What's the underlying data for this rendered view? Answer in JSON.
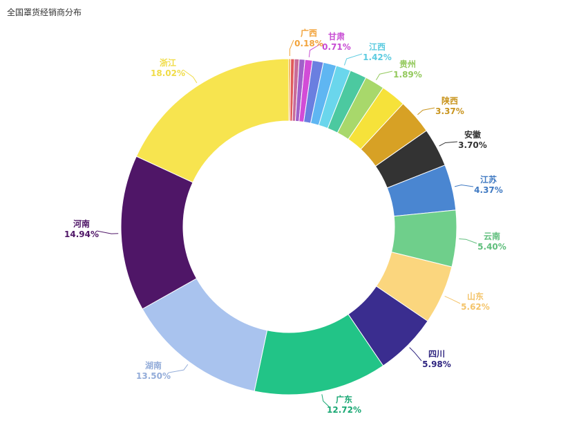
{
  "title": "全国罩货经销商分布",
  "chart_data": {
    "type": "pie",
    "variant": "donut",
    "title": "全国罩货经销商分布",
    "slices": [
      {
        "name": "广西",
        "value": 0.18,
        "label": "0.18%",
        "color": "#f2a33a"
      },
      {
        "name": "",
        "value": 0.35,
        "label": "",
        "color": "#e05a5a"
      },
      {
        "name": "",
        "value": 0.45,
        "label": "",
        "color": "#c86b9a"
      },
      {
        "name": "",
        "value": 0.55,
        "label": "",
        "color": "#a061c9"
      },
      {
        "name": "甘肃",
        "value": 0.71,
        "label": "0.71%",
        "color": "#d24cd7"
      },
      {
        "name": "",
        "value": 1.05,
        "label": "",
        "color": "#6a7fe0"
      },
      {
        "name": "",
        "value": 1.25,
        "label": "",
        "color": "#5fb6f2"
      },
      {
        "name": "江西",
        "value": 1.42,
        "label": "1.42%",
        "color": "#6ad6ec"
      },
      {
        "name": "",
        "value": 1.6,
        "label": "",
        "color": "#4cc9a0"
      },
      {
        "name": "贵州",
        "value": 1.89,
        "label": "1.89%",
        "color": "#a8d86b"
      },
      {
        "name": "",
        "value": 2.4,
        "label": "",
        "color": "#f6e23a"
      },
      {
        "name": "陕西",
        "value": 3.37,
        "label": "3.37%",
        "color": "#d7a125"
      },
      {
        "name": "安徽",
        "value": 3.7,
        "label": "3.70%",
        "color": "#333333"
      },
      {
        "name": "江苏",
        "value": 4.37,
        "label": "4.37%",
        "color": "#4a86d1"
      },
      {
        "name": "云南",
        "value": 5.4,
        "label": "5.40%",
        "color": "#6fcf8b"
      },
      {
        "name": "山东",
        "value": 5.62,
        "label": "5.62%",
        "color": "#fbd67e"
      },
      {
        "name": "四川",
        "value": 5.98,
        "label": "5.98%",
        "color": "#3a2d8f"
      },
      {
        "name": "广东",
        "value": 12.72,
        "label": "12.72%",
        "color": "#22c487"
      },
      {
        "name": "湖南",
        "value": 13.5,
        "label": "13.50%",
        "color": "#a9c3ee"
      },
      {
        "name": "河南",
        "value": 14.94,
        "label": "14.94%",
        "color": "#4f1667"
      },
      {
        "name": "浙江",
        "value": 18.02,
        "label": "18.02%",
        "color": "#f7e44f"
      }
    ],
    "label_colors": {
      "广西": "#f2a33a",
      "甘肃": "#c74bd3",
      "江西": "#5ccbe0",
      "贵州": "#93c95c",
      "陕西": "#c9951f",
      "安徽": "#333333",
      "江苏": "#3f79c2",
      "云南": "#5fbe7c",
      "山东": "#f4c46a",
      "四川": "#2f2580",
      "广东": "#1aa874",
      "湖南": "#93acd9",
      "河南": "#4f1667",
      "浙江": "#f0dc48"
    }
  }
}
